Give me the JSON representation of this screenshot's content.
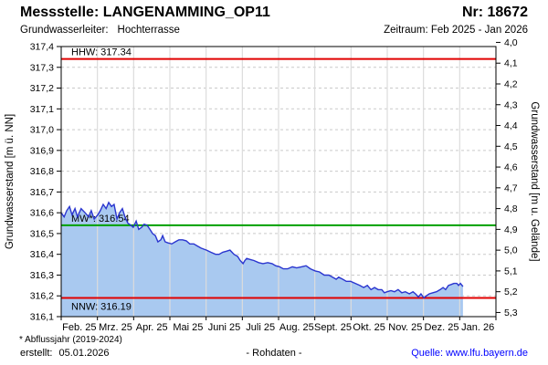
{
  "header": {
    "station_label": "Messstelle: LANGENAMMING_OP11",
    "number_label": "Nr: 18672",
    "aquifer_label": "Grundwasserleiter:",
    "aquifer_value": "Hochterrasse",
    "period_label": "Zeitraum: Feb 2025 - Jan 2026"
  },
  "footer": {
    "footnote": "* Abflussjahr (2019-2024)",
    "created_label": "erstellt:",
    "created_date": "05.01.2026",
    "center_note": "- Rohdaten -",
    "source_text": "Quelle: www.lfu.bayern.de"
  },
  "colors": {
    "series_line": "#2a35cf",
    "series_fill": "#a9c9f0",
    "hhw_nnw_line": "#e10000",
    "mw_line": "#00a000",
    "grid_h": "#c9c9c9",
    "grid_v": "#dcdcdc",
    "axis": "#000000",
    "link": "#0000ff"
  },
  "chart_data": {
    "type": "area",
    "title": "",
    "ylabel_left": "Grundwasserstand [m ü. NN]",
    "ylabel_right": "Grundwasserstand [m u. Gelände]",
    "ylim": [
      316.1,
      317.4
    ],
    "y_tick_step": 0.1,
    "right_axis": {
      "tick_min": 4.0,
      "tick_max": 5.3,
      "step": 0.1,
      "ground_elevation": 321.42
    },
    "x_categories": [
      "Feb. 25",
      "Mrz. 25",
      "Apr. 25",
      "Mai 25",
      "Juni 25",
      "Juli 25",
      "Aug. 25",
      "Sept. 25",
      "Okt. 25",
      "Nov. 25",
      "Dez. 25",
      "Jan. 26"
    ],
    "reference_lines": [
      {
        "name": "HHW",
        "label": "HHW: 317.34",
        "value": 317.34,
        "color": "#e10000",
        "label_pos": "above"
      },
      {
        "name": "MW",
        "label": "MW*: 316.54",
        "value": 316.54,
        "color": "#00a000",
        "label_pos": "above"
      },
      {
        "name": "NNW",
        "label": "NNW: 316.19",
        "value": 316.19,
        "color": "#e10000",
        "label_pos": "below"
      }
    ],
    "series": [
      {
        "name": "Rohdaten",
        "points": [
          [
            0.0,
            316.6
          ],
          [
            0.08,
            316.58
          ],
          [
            0.15,
            316.61
          ],
          [
            0.23,
            316.63
          ],
          [
            0.3,
            316.59
          ],
          [
            0.38,
            316.62
          ],
          [
            0.45,
            316.58
          ],
          [
            0.55,
            316.62
          ],
          [
            0.66,
            316.6
          ],
          [
            0.76,
            316.58
          ],
          [
            0.83,
            316.61
          ],
          [
            0.91,
            316.57
          ],
          [
            1.01,
            316.59
          ],
          [
            1.08,
            316.61
          ],
          [
            1.16,
            316.64
          ],
          [
            1.24,
            316.62
          ],
          [
            1.31,
            316.65
          ],
          [
            1.39,
            316.63
          ],
          [
            1.46,
            316.64
          ],
          [
            1.54,
            316.57
          ],
          [
            1.61,
            316.6
          ],
          [
            1.69,
            316.62
          ],
          [
            1.76,
            316.58
          ],
          [
            1.84,
            316.55
          ],
          [
            1.92,
            316.54
          ],
          [
            1.99,
            316.53
          ],
          [
            2.07,
            316.56
          ],
          [
            2.14,
            316.52
          ],
          [
            2.22,
            316.53
          ],
          [
            2.29,
            316.545
          ],
          [
            2.37,
            316.54
          ],
          [
            2.45,
            316.52
          ],
          [
            2.52,
            316.5
          ],
          [
            2.6,
            316.49
          ],
          [
            2.67,
            316.46
          ],
          [
            2.75,
            316.47
          ],
          [
            2.8,
            316.49
          ],
          [
            2.87,
            316.46
          ],
          [
            2.95,
            316.455
          ],
          [
            3.05,
            316.45
          ],
          [
            3.15,
            316.46
          ],
          [
            3.25,
            316.47
          ],
          [
            3.35,
            316.47
          ],
          [
            3.45,
            316.465
          ],
          [
            3.55,
            316.45
          ],
          [
            3.66,
            316.45
          ],
          [
            3.76,
            316.44
          ],
          [
            3.86,
            316.43
          ],
          [
            4.01,
            316.42
          ],
          [
            4.13,
            316.41
          ],
          [
            4.26,
            316.4
          ],
          [
            4.36,
            316.4
          ],
          [
            4.46,
            316.41
          ],
          [
            4.56,
            316.415
          ],
          [
            4.66,
            316.42
          ],
          [
            4.77,
            316.4
          ],
          [
            4.87,
            316.39
          ],
          [
            4.94,
            316.37
          ],
          [
            5.02,
            316.355
          ],
          [
            5.07,
            316.37
          ],
          [
            5.12,
            316.38
          ],
          [
            5.22,
            316.375
          ],
          [
            5.32,
            316.37
          ],
          [
            5.45,
            316.36
          ],
          [
            5.57,
            316.355
          ],
          [
            5.7,
            316.36
          ],
          [
            5.82,
            316.355
          ],
          [
            5.92,
            316.345
          ],
          [
            6.03,
            316.34
          ],
          [
            6.13,
            316.33
          ],
          [
            6.25,
            316.33
          ],
          [
            6.38,
            316.34
          ],
          [
            6.5,
            316.335
          ],
          [
            6.63,
            316.34
          ],
          [
            6.76,
            316.345
          ],
          [
            6.88,
            316.33
          ],
          [
            7.01,
            316.32
          ],
          [
            7.13,
            316.315
          ],
          [
            7.26,
            316.3
          ],
          [
            7.39,
            316.3
          ],
          [
            7.49,
            316.29
          ],
          [
            7.59,
            316.28
          ],
          [
            7.66,
            316.29
          ],
          [
            7.77,
            316.28
          ],
          [
            7.87,
            316.27
          ],
          [
            7.99,
            316.27
          ],
          [
            8.12,
            316.26
          ],
          [
            8.24,
            316.25
          ],
          [
            8.35,
            316.24
          ],
          [
            8.45,
            316.25
          ],
          [
            8.55,
            316.23
          ],
          [
            8.65,
            316.24
          ],
          [
            8.75,
            316.23
          ],
          [
            8.85,
            316.23
          ],
          [
            8.92,
            316.215
          ],
          [
            9.0,
            316.22
          ],
          [
            9.1,
            316.225
          ],
          [
            9.2,
            316.22
          ],
          [
            9.3,
            316.23
          ],
          [
            9.4,
            316.215
          ],
          [
            9.5,
            316.22
          ],
          [
            9.61,
            316.21
          ],
          [
            9.71,
            316.22
          ],
          [
            9.78,
            316.21
          ],
          [
            9.86,
            316.195
          ],
          [
            9.93,
            316.21
          ],
          [
            10.01,
            316.19
          ],
          [
            10.08,
            316.2
          ],
          [
            10.16,
            316.21
          ],
          [
            10.26,
            316.215
          ],
          [
            10.36,
            316.22
          ],
          [
            10.46,
            316.23
          ],
          [
            10.54,
            316.24
          ],
          [
            10.61,
            316.23
          ],
          [
            10.69,
            316.25
          ],
          [
            10.77,
            316.255
          ],
          [
            10.84,
            316.26
          ],
          [
            10.92,
            316.26
          ],
          [
            10.97,
            316.25
          ],
          [
            11.02,
            316.26
          ],
          [
            11.09,
            316.245
          ]
        ]
      }
    ]
  }
}
